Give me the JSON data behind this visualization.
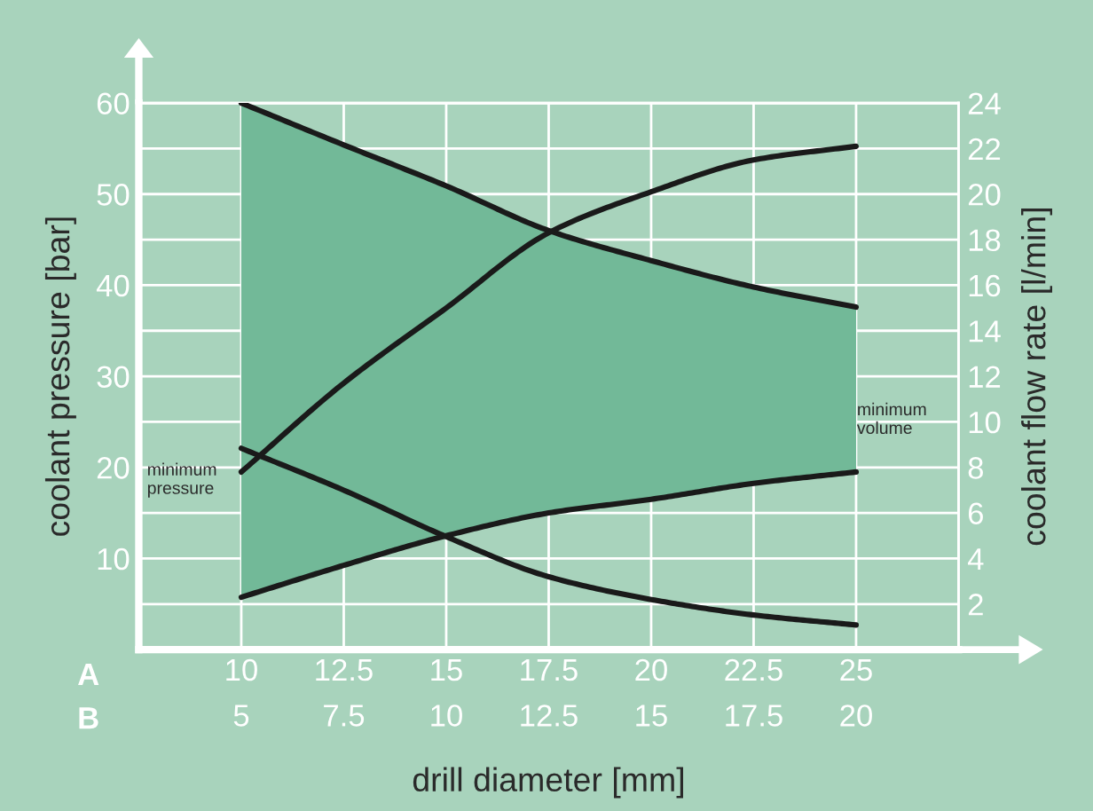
{
  "chart_data": {
    "type": "line",
    "xlabel": "drill diameter [mm]",
    "ylabel": "coolant pressure [bar]",
    "y2label": "coolant flow rate [l/min]",
    "x": [
      10,
      12.5,
      15,
      17.5,
      20,
      22.5,
      25
    ],
    "series": [
      {
        "color": "#1a1a1a",
        "values": [
          60,
          55.4,
          50.9,
          46.0,
          42.7,
          39.8,
          37.6
        ],
        "lower": [
          5.75,
          9.25,
          12.5,
          15,
          16.5,
          18.25,
          19.5
        ],
        "upper": [
          60,
          55.4,
          50.9,
          46.0,
          42.7,
          39.8,
          37.6
        ]
      },
      {
        "color": "#1a1a1a",
        "values": [
          22.1,
          17.5,
          12.4,
          8.0,
          5.5,
          3.8,
          2.7
        ]
      },
      {
        "color": "#1a1a1a",
        "axis": "y2",
        "values": [
          7.8,
          11.7,
          15.0,
          18.3,
          20.1,
          21.5,
          22.1
        ]
      },
      {
        "color": "#1a1a1a",
        "axis": "y2",
        "values": [
          2.3,
          3.7,
          5.0,
          6.0,
          6.6,
          7.3,
          7.8
        ]
      }
    ],
    "xlim": [
      7.5,
      27.5
    ],
    "xticks": [
      10,
      12.5,
      15,
      17.5,
      20,
      22.5,
      25
    ],
    "x2lim": [
      2.5,
      22.5
    ],
    "x2ticks": [
      5,
      7.5,
      10,
      12.5,
      15,
      17.5,
      20
    ],
    "ylim": [
      0,
      60
    ],
    "yticks": [
      10,
      20,
      30,
      40,
      50,
      60
    ],
    "y2lim": [
      0,
      24
    ],
    "y2ticks": [
      2,
      4,
      6,
      8,
      10,
      12,
      14,
      16,
      18,
      20,
      22,
      24
    ],
    "grid": true,
    "marker": "none",
    "line_style": "solid",
    "annotations": [
      "A",
      "B",
      "minimum\npressure",
      "minimum\nvolume"
    ]
  }
}
